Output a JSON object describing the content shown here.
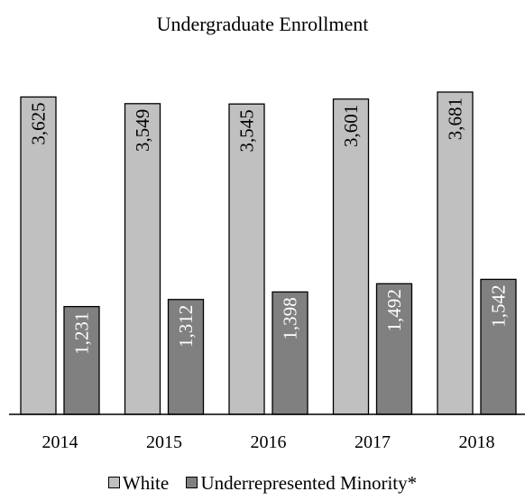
{
  "chart_data": {
    "type": "bar",
    "title": "Undergraduate Enrollment",
    "categories": [
      "2014",
      "2015",
      "2016",
      "2017",
      "2018"
    ],
    "series": [
      {
        "name": "White",
        "values": [
          3625,
          3549,
          3545,
          3601,
          3681
        ],
        "labels": [
          "3,625",
          "3,549",
          "3,545",
          "3,601",
          "3,681"
        ],
        "color": "#c0c0c0",
        "label_color": "#000000"
      },
      {
        "name": "Underrepresented Minority*",
        "values": [
          1231,
          1312,
          1398,
          1492,
          1542
        ],
        "labels": [
          "1,231",
          "1,312",
          "1,398",
          "1,492",
          "1,542"
        ],
        "color": "#808080",
        "label_color": "#ffffff"
      }
    ],
    "ylim": [
      0,
      3681
    ],
    "grid": false,
    "legend_position": "bottom"
  }
}
